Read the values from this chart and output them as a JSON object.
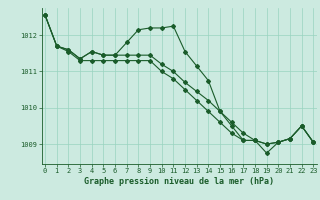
{
  "x": [
    0,
    1,
    2,
    3,
    4,
    5,
    6,
    7,
    8,
    9,
    10,
    11,
    12,
    13,
    14,
    15,
    16,
    17,
    18,
    19,
    20,
    21,
    22,
    23
  ],
  "line1": [
    1012.55,
    1011.7,
    1011.6,
    1011.35,
    1011.55,
    1011.45,
    1011.45,
    1011.8,
    1012.15,
    1012.2,
    1012.2,
    1012.25,
    1011.55,
    1011.15,
    1010.75,
    1009.9,
    1009.5,
    1009.1,
    1009.1,
    1008.75,
    1009.05,
    1009.15,
    1009.5,
    1009.05
  ],
  "line2": [
    1012.55,
    1011.7,
    1011.6,
    1011.35,
    1011.55,
    1011.45,
    1011.45,
    1011.45,
    1011.45,
    1011.45,
    1011.2,
    1011.0,
    1010.7,
    1010.45,
    1010.2,
    1009.9,
    1009.6,
    1009.3,
    1009.1,
    1009.0,
    1009.05,
    1009.15,
    1009.5,
    1009.05
  ],
  "line3": [
    1012.55,
    1011.7,
    1011.55,
    1011.3,
    1011.3,
    1011.3,
    1011.3,
    1011.3,
    1011.3,
    1011.3,
    1011.0,
    1010.8,
    1010.5,
    1010.2,
    1009.9,
    1009.6,
    1009.3,
    1009.1,
    1009.1,
    1009.0,
    1009.05,
    1009.15,
    1009.5,
    1009.05
  ],
  "bg_color": "#cceae0",
  "grid_color": "#99d4c0",
  "line_color": "#1a5c2a",
  "xlabel": "Graphe pression niveau de la mer (hPa)",
  "yticks": [
    1009,
    1010,
    1011,
    1012
  ],
  "xticks": [
    0,
    1,
    2,
    3,
    4,
    5,
    6,
    7,
    8,
    9,
    10,
    11,
    12,
    13,
    14,
    15,
    16,
    17,
    18,
    19,
    20,
    21,
    22,
    23
  ],
  "ylim": [
    1008.45,
    1012.75
  ],
  "xlim": [
    -0.3,
    23.3
  ],
  "tick_fontsize": 5.0,
  "xlabel_fontsize": 6.0,
  "marker_size": 2.0,
  "line_width": 0.8
}
